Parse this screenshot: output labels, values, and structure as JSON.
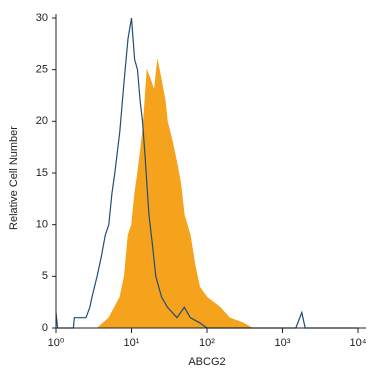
{
  "chart_data": {
    "type": "histogram-line",
    "x_label": "ABCG2",
    "y_label": "Relative Cell Number",
    "xscale": "log",
    "xlim": [
      1,
      10000
    ],
    "xticks": [
      {
        "value": 1,
        "label": "10⁰"
      },
      {
        "value": 10,
        "label": "10¹"
      },
      {
        "value": 100,
        "label": "10²"
      },
      {
        "value": 1000,
        "label": "10³"
      },
      {
        "value": 10000,
        "label": "10⁴"
      }
    ],
    "ylim": [
      0,
      30
    ],
    "yticks": [
      0,
      5,
      10,
      15,
      20,
      25,
      30
    ],
    "grid": false,
    "series": [
      {
        "color": "#f5a21c",
        "fill": true,
        "x": [
          3.5,
          5,
          7,
          8,
          9,
          10,
          11,
          12,
          13,
          14,
          15,
          16,
          18,
          20,
          22,
          25,
          28,
          30,
          35,
          40,
          45,
          50,
          60,
          70,
          80,
          100,
          150,
          200,
          300,
          400
        ],
        "values": [
          0,
          1,
          3,
          5,
          9,
          10,
          13,
          15,
          17,
          19,
          22,
          25,
          24,
          23,
          26,
          24,
          22,
          20,
          18,
          16,
          14,
          11,
          9,
          6,
          4,
          3,
          2,
          1,
          0.5,
          0
        ]
      },
      {
        "color": "#1f4e79",
        "fill": false,
        "x": [
          1,
          1.05,
          1.7,
          1.75,
          2.5,
          2.8,
          3,
          3.5,
          4,
          4.5,
          5,
          5.5,
          6,
          7,
          8,
          9,
          10,
          11,
          12,
          13,
          14,
          15,
          17,
          19,
          21,
          25,
          30,
          40,
          50,
          60,
          80,
          100,
          1500,
          1800,
          2000,
          10000
        ],
        "values": [
          1.5,
          0,
          0,
          1,
          1,
          2,
          3,
          5,
          7,
          9,
          10,
          13,
          15,
          19,
          24,
          28,
          30,
          26,
          25,
          22,
          20,
          17,
          11,
          8,
          5,
          3,
          2,
          1,
          2,
          1,
          0.5,
          0,
          0,
          1.5,
          0,
          0
        ]
      }
    ]
  }
}
